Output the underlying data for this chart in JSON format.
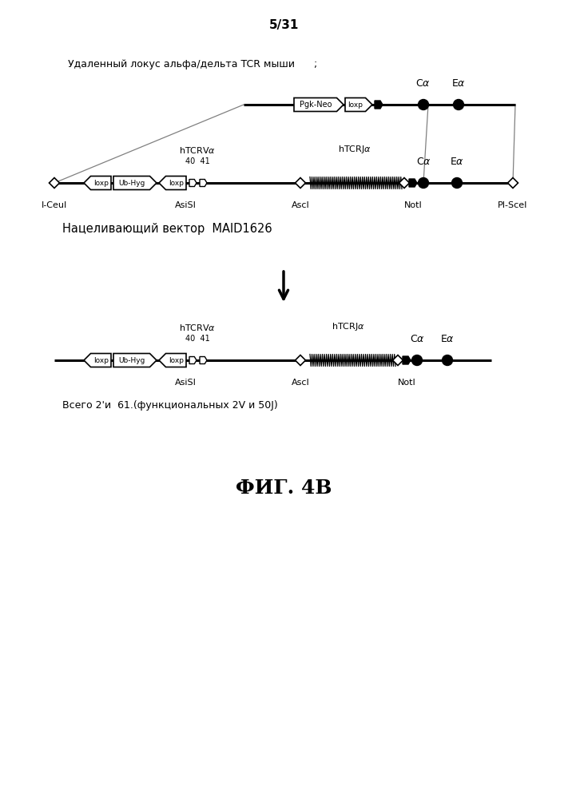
{
  "page_label": "5/31",
  "title_top": "Удаленный локус альфа/дельта TCR мыши",
  "title_top_suffix": ";",
  "targeting_vector_label": "Нацеливающий вектор  MAID1626",
  "result_label": "Всего 2'и  61.(функциональных 2V и 50J)",
  "fig_label": "ФИГ. 4В",
  "bg_color": "#ffffff",
  "line_color": "#000000"
}
